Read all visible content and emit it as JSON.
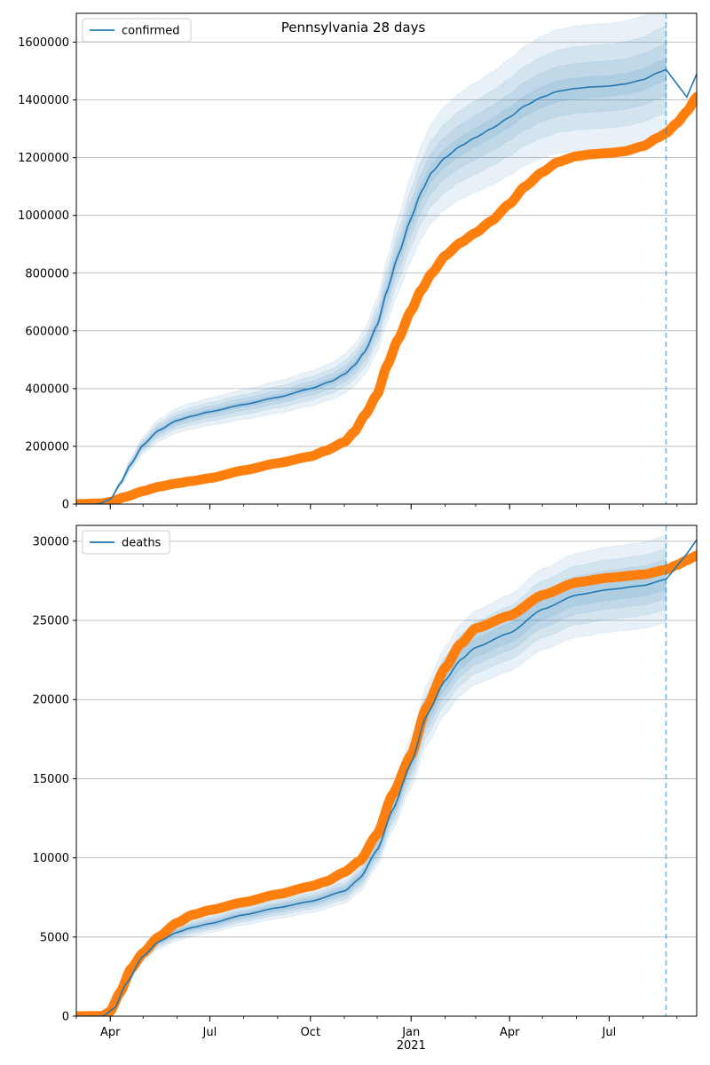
{
  "figure_title": "Pennsylvania 28 days",
  "colors": {
    "model": "#1f77b4",
    "observed": "#ff7f0e",
    "band": "#1f77b4",
    "grid": "#b0b0b0",
    "forecast_line": "#1f77b4"
  },
  "x_axis": {
    "tick_labels": [
      "Apr",
      "Jul",
      "Oct",
      "Jan",
      "Apr",
      "Jul"
    ],
    "tick_dates": [
      "2020-04-01",
      "2020-07-01",
      "2020-10-01",
      "2021-01-01",
      "2021-04-01",
      "2021-07-01"
    ],
    "year_label": "2021",
    "range": [
      "2020-03-01",
      "2021-09-19"
    ],
    "forecast_date": "2021-08-22"
  },
  "chart_data": [
    {
      "type": "line",
      "title": "Pennsylvania 28 days",
      "legend": {
        "label": "confirmed",
        "placement": "top-left"
      },
      "grid": "y",
      "ylim": [
        0,
        1700000
      ],
      "y_ticks": [
        0,
        200000,
        400000,
        600000,
        800000,
        1000000,
        1200000,
        1400000,
        1600000
      ],
      "y_tick_labels": [
        "0",
        "200000",
        "400000",
        "600000",
        "800000",
        "1000000",
        "1200000",
        "1400000",
        "1600000"
      ],
      "model_series": {
        "name": "confirmed",
        "points": [
          [
            "2020-03-01",
            0
          ],
          [
            "2020-03-20",
            0
          ],
          [
            "2020-04-01",
            15000
          ],
          [
            "2020-04-10",
            70000
          ],
          [
            "2020-04-20",
            140000
          ],
          [
            "2020-05-01",
            205000
          ],
          [
            "2020-05-15",
            255000
          ],
          [
            "2020-06-01",
            290000
          ],
          [
            "2020-06-15",
            305000
          ],
          [
            "2020-07-01",
            320000
          ],
          [
            "2020-08-01",
            345000
          ],
          [
            "2020-09-01",
            370000
          ],
          [
            "2020-10-01",
            400000
          ],
          [
            "2020-10-20",
            425000
          ],
          [
            "2020-11-01",
            450000
          ],
          [
            "2020-11-10",
            480000
          ],
          [
            "2020-11-20",
            530000
          ],
          [
            "2020-12-01",
            620000
          ],
          [
            "2020-12-10",
            740000
          ],
          [
            "2020-12-20",
            860000
          ],
          [
            "2021-01-01",
            990000
          ],
          [
            "2021-01-10",
            1080000
          ],
          [
            "2021-01-20",
            1150000
          ],
          [
            "2021-02-01",
            1200000
          ],
          [
            "2021-02-15",
            1240000
          ],
          [
            "2021-03-01",
            1270000
          ],
          [
            "2021-03-15",
            1300000
          ],
          [
            "2021-04-01",
            1340000
          ],
          [
            "2021-04-15",
            1380000
          ],
          [
            "2021-05-01",
            1410000
          ],
          [
            "2021-05-15",
            1430000
          ],
          [
            "2021-06-01",
            1440000
          ],
          [
            "2021-06-15",
            1445000
          ],
          [
            "2021-07-01",
            1448000
          ],
          [
            "2021-07-15",
            1455000
          ],
          [
            "2021-08-01",
            1470000
          ],
          [
            "2021-08-15",
            1495000
          ],
          [
            "2021-08-22",
            1505000
          ]
        ],
        "extension": [
          [
            "2021-09-10",
            1410000
          ],
          [
            "2021-09-19",
            1490000
          ]
        ]
      },
      "bands_rel_halfwidth": [
        0.025,
        0.06,
        0.1,
        0.15
      ],
      "observed_series": [
        [
          "2020-03-01",
          0
        ],
        [
          "2020-03-25",
          3000
        ],
        [
          "2020-04-01",
          8000
        ],
        [
          "2020-04-15",
          25000
        ],
        [
          "2020-05-01",
          45000
        ],
        [
          "2020-05-15",
          60000
        ],
        [
          "2020-06-01",
          72000
        ],
        [
          "2020-06-15",
          80000
        ],
        [
          "2020-07-01",
          90000
        ],
        [
          "2020-08-01",
          117000
        ],
        [
          "2020-09-01",
          142000
        ],
        [
          "2020-10-01",
          165000
        ],
        [
          "2020-10-15",
          185000
        ],
        [
          "2020-11-01",
          215000
        ],
        [
          "2020-11-10",
          250000
        ],
        [
          "2020-11-20",
          310000
        ],
        [
          "2020-12-01",
          380000
        ],
        [
          "2020-12-10",
          480000
        ],
        [
          "2020-12-20",
          570000
        ],
        [
          "2021-01-01",
          670000
        ],
        [
          "2021-01-10",
          740000
        ],
        [
          "2021-01-20",
          800000
        ],
        [
          "2021-02-01",
          860000
        ],
        [
          "2021-02-15",
          905000
        ],
        [
          "2021-03-01",
          940000
        ],
        [
          "2021-03-15",
          980000
        ],
        [
          "2021-04-01",
          1040000
        ],
        [
          "2021-04-15",
          1100000
        ],
        [
          "2021-05-01",
          1150000
        ],
        [
          "2021-05-15",
          1185000
        ],
        [
          "2021-06-01",
          1205000
        ],
        [
          "2021-06-15",
          1212000
        ],
        [
          "2021-07-01",
          1216000
        ],
        [
          "2021-07-15",
          1222000
        ],
        [
          "2021-08-01",
          1240000
        ],
        [
          "2021-08-15",
          1270000
        ],
        [
          "2021-08-22",
          1285000
        ],
        [
          "2021-09-01",
          1320000
        ],
        [
          "2021-09-10",
          1360000
        ],
        [
          "2021-09-19",
          1410000
        ]
      ]
    },
    {
      "type": "line",
      "title": "",
      "legend": {
        "label": "deaths",
        "placement": "top-left"
      },
      "grid": "y",
      "ylim": [
        0,
        31000
      ],
      "y_ticks": [
        0,
        5000,
        10000,
        15000,
        20000,
        25000,
        30000
      ],
      "y_tick_labels": [
        "0",
        "5000",
        "10000",
        "15000",
        "20000",
        "25000",
        "30000"
      ],
      "model_series": {
        "name": "deaths",
        "points": [
          [
            "2020-03-01",
            0
          ],
          [
            "2020-03-25",
            0
          ],
          [
            "2020-04-05",
            500
          ],
          [
            "2020-04-15",
            2000
          ],
          [
            "2020-05-01",
            3800
          ],
          [
            "2020-05-15",
            4700
          ],
          [
            "2020-06-01",
            5300
          ],
          [
            "2020-06-15",
            5600
          ],
          [
            "2020-07-01",
            5850
          ],
          [
            "2020-08-01",
            6400
          ],
          [
            "2020-09-01",
            6850
          ],
          [
            "2020-10-01",
            7250
          ],
          [
            "2020-11-01",
            7900
          ],
          [
            "2020-11-15",
            8700
          ],
          [
            "2020-12-01",
            10500
          ],
          [
            "2020-12-15",
            13000
          ],
          [
            "2021-01-01",
            16000
          ],
          [
            "2021-01-15",
            19000
          ],
          [
            "2021-02-01",
            21200
          ],
          [
            "2021-02-15",
            22500
          ],
          [
            "2021-03-01",
            23300
          ],
          [
            "2021-04-01",
            24200
          ],
          [
            "2021-05-01",
            25700
          ],
          [
            "2021-06-01",
            26600
          ],
          [
            "2021-07-01",
            26950
          ],
          [
            "2021-08-01",
            27200
          ],
          [
            "2021-08-22",
            27600
          ]
        ],
        "extension": [
          [
            "2021-09-10",
            29200
          ],
          [
            "2021-09-19",
            30100
          ]
        ]
      },
      "bands_rel_halfwidth": [
        0.025,
        0.045,
        0.07,
        0.1
      ],
      "observed_series": [
        [
          "2020-03-01",
          0
        ],
        [
          "2020-03-25",
          20
        ],
        [
          "2020-04-01",
          300
        ],
        [
          "2020-04-10",
          1500
        ],
        [
          "2020-04-20",
          3000
        ],
        [
          "2020-05-01",
          4000
        ],
        [
          "2020-05-15",
          5000
        ],
        [
          "2020-06-01",
          5900
        ],
        [
          "2020-06-15",
          6400
        ],
        [
          "2020-07-01",
          6700
        ],
        [
          "2020-08-01",
          7200
        ],
        [
          "2020-09-01",
          7700
        ],
        [
          "2020-10-01",
          8200
        ],
        [
          "2020-10-15",
          8500
        ],
        [
          "2020-11-01",
          9100
        ],
        [
          "2020-11-15",
          9800
        ],
        [
          "2020-12-01",
          11500
        ],
        [
          "2020-12-15",
          14000
        ],
        [
          "2021-01-01",
          16500
        ],
        [
          "2021-01-15",
          19500
        ],
        [
          "2021-02-01",
          22000
        ],
        [
          "2021-02-15",
          23500
        ],
        [
          "2021-03-01",
          24500
        ],
        [
          "2021-04-01",
          25300
        ],
        [
          "2021-05-01",
          26600
        ],
        [
          "2021-06-01",
          27400
        ],
        [
          "2021-07-01",
          27700
        ],
        [
          "2021-08-01",
          27900
        ],
        [
          "2021-08-22",
          28200
        ],
        [
          "2021-09-01",
          28500
        ],
        [
          "2021-09-10",
          28800
        ],
        [
          "2021-09-19",
          29100
        ]
      ]
    }
  ]
}
